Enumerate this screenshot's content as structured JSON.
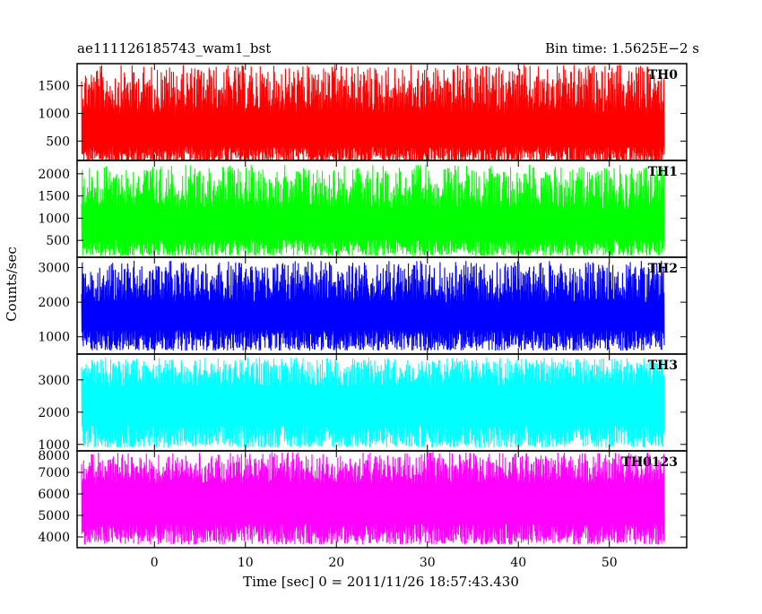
{
  "header": {
    "title_left": "ae111126185743_wam1_bst",
    "title_right": "Bin time: 1.5625E−2 s"
  },
  "axes": {
    "xlabel": "Time [sec] 0 = 2011/11/26 18:57:43.430",
    "ylabel": "Counts/sec"
  },
  "chart_data": {
    "type": "line",
    "title": "ae111126185743_wam1_bst",
    "subtitle": "Bin time: 1.5625E−2 s",
    "xlabel": "Time [sec] 0 = 2011/11/26 18:57:43.430",
    "ylabel": "Counts/sec",
    "xlim": [
      -8.5,
      58.5
    ],
    "data_x_range": [
      -8,
      56
    ],
    "x_ticks": [
      0,
      10,
      20,
      30,
      40,
      50
    ],
    "bin_time": 0.015625,
    "grid": false,
    "legend": "none",
    "panels": [
      {
        "name": "TH0",
        "color": "#ff0000",
        "ylim": [
          150,
          1900
        ],
        "y_ticks": [
          500,
          1000,
          1500
        ],
        "range_low": [
          80,
          400
        ],
        "range_high": [
          1000,
          1880
        ],
        "mean": 940
      },
      {
        "name": "TH1",
        "color": "#00ff00",
        "ylim": [
          120,
          2300
        ],
        "y_ticks": [
          500,
          1000,
          1500,
          2000
        ],
        "range_low": [
          150,
          520
        ],
        "range_high": [
          1200,
          2200
        ],
        "mean": 930
      },
      {
        "name": "TH2",
        "color": "#0000ff",
        "ylim": [
          500,
          3300
        ],
        "y_ticks": [
          1000,
          2000,
          3000
        ],
        "range_low": [
          600,
          1200
        ],
        "range_high": [
          2000,
          3200
        ],
        "mean": 1700
      },
      {
        "name": "TH3",
        "color": "#00ffff",
        "ylim": [
          800,
          3800
        ],
        "y_ticks": [
          1000,
          2000,
          3000
        ],
        "range_low": [
          900,
          1600
        ],
        "range_high": [
          2800,
          3700
        ],
        "mean": 2350
      },
      {
        "name": "TH0123",
        "color": "#ff00ff",
        "ylim": [
          3500,
          8000
        ],
        "y_ticks": [
          4000,
          5000,
          6000,
          7000,
          8000
        ],
        "range_low": [
          3650,
          4600
        ],
        "range_high": [
          6500,
          7950
        ],
        "mean": 5600
      }
    ]
  }
}
